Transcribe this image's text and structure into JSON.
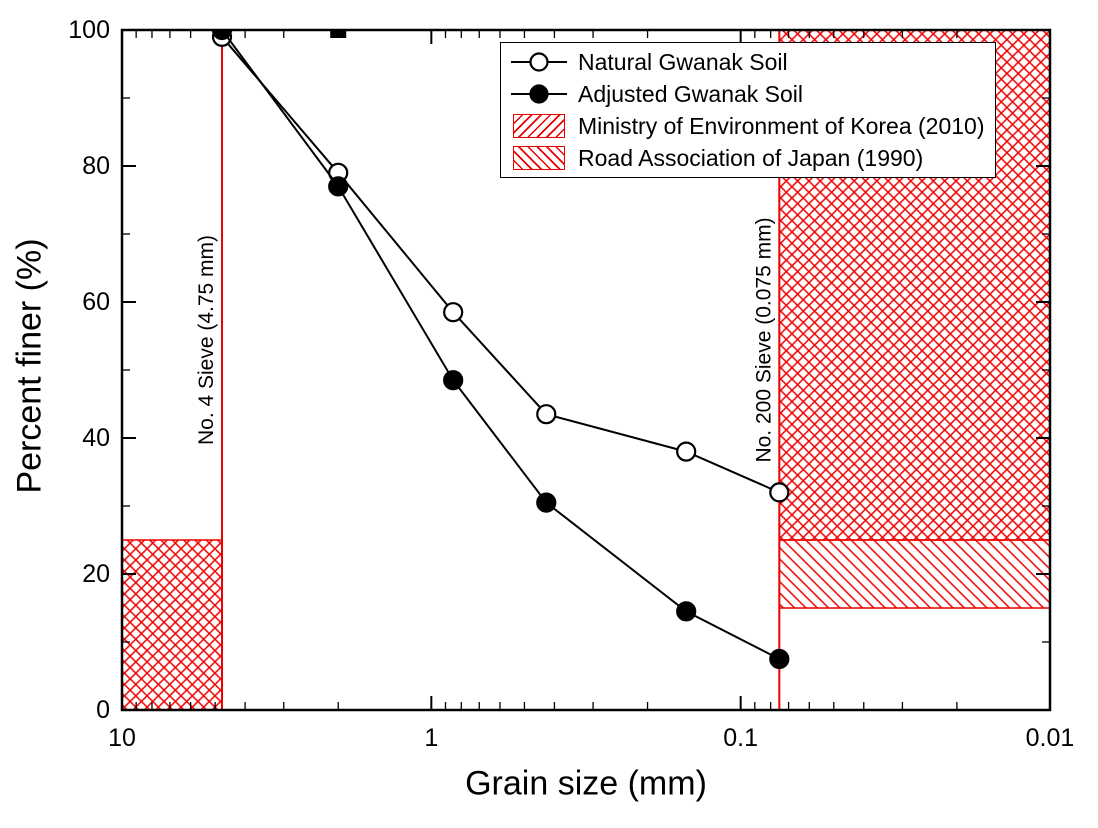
{
  "chart_data": {
    "type": "line",
    "xlabel": "Grain size (mm)",
    "ylabel": "Percent finer (%)",
    "x_scale": "log10-reversed",
    "x_left": 10,
    "x_right": 0.01,
    "ylim": [
      0,
      100
    ],
    "x_ticks": [
      10,
      1,
      0.1,
      0.01
    ],
    "x_tick_labels": [
      "10",
      "1",
      "0.1",
      "0.01"
    ],
    "y_ticks": [
      0,
      20,
      40,
      60,
      80,
      100
    ],
    "y_tick_labels": [
      "0",
      "20",
      "40",
      "60",
      "80",
      "100"
    ],
    "y_minor_step": 10,
    "series": [
      {
        "name": "Natural Gwanak Soil",
        "marker": "open-circle",
        "points": [
          {
            "x": 4.75,
            "y": 99
          },
          {
            "x": 2.0,
            "y": 79
          },
          {
            "x": 0.85,
            "y": 58.5
          },
          {
            "x": 0.425,
            "y": 43.5
          },
          {
            "x": 0.15,
            "y": 38
          },
          {
            "x": 0.075,
            "y": 32
          }
        ]
      },
      {
        "name": "Adjusted Gwanak Soil",
        "marker": "filled-circle",
        "points": [
          {
            "x": 4.75,
            "y": 100
          },
          {
            "x": 2.0,
            "y": 77
          },
          {
            "x": 0.85,
            "y": 48.5
          },
          {
            "x": 0.425,
            "y": 30.5
          },
          {
            "x": 0.15,
            "y": 14.5
          },
          {
            "x": 0.075,
            "y": 7.5
          }
        ]
      }
    ],
    "extra_top_marks_x": [
      2.0
    ],
    "sieve_lines": [
      {
        "x": 4.75,
        "label": "No. 4 Sieve (4.75 mm)"
      },
      {
        "x": 0.075,
        "label": "No. 200 Sieve (0.075 mm)"
      }
    ],
    "spec_regions": [
      {
        "name": "coarse-side-band",
        "x1": 10,
        "x2": 4.75,
        "y1": 0,
        "y2": 25,
        "hatch": "cross"
      },
      {
        "name": "fines-side-upper",
        "x1": 0.075,
        "x2": 0.01,
        "y1": 25,
        "y2": 100,
        "hatch": "cross"
      },
      {
        "name": "fines-side-band",
        "x1": 0.075,
        "x2": 0.01,
        "y1": 15,
        "y2": 25,
        "hatch": "back"
      }
    ],
    "legend": {
      "items": [
        {
          "label": "Natural Gwanak Soil",
          "swatch": "line-open-circle"
        },
        {
          "label": "Adjusted Gwanak Soil",
          "swatch": "line-filled-circle"
        },
        {
          "label": "Ministry of Environment of Korea (2010)",
          "swatch": "hatch-forward"
        },
        {
          "label": "Road Association of Japan (1990)",
          "swatch": "hatch-back"
        }
      ]
    },
    "colors": {
      "series": "#000000",
      "spec": "#ee0000",
      "background": "#ffffff"
    }
  }
}
